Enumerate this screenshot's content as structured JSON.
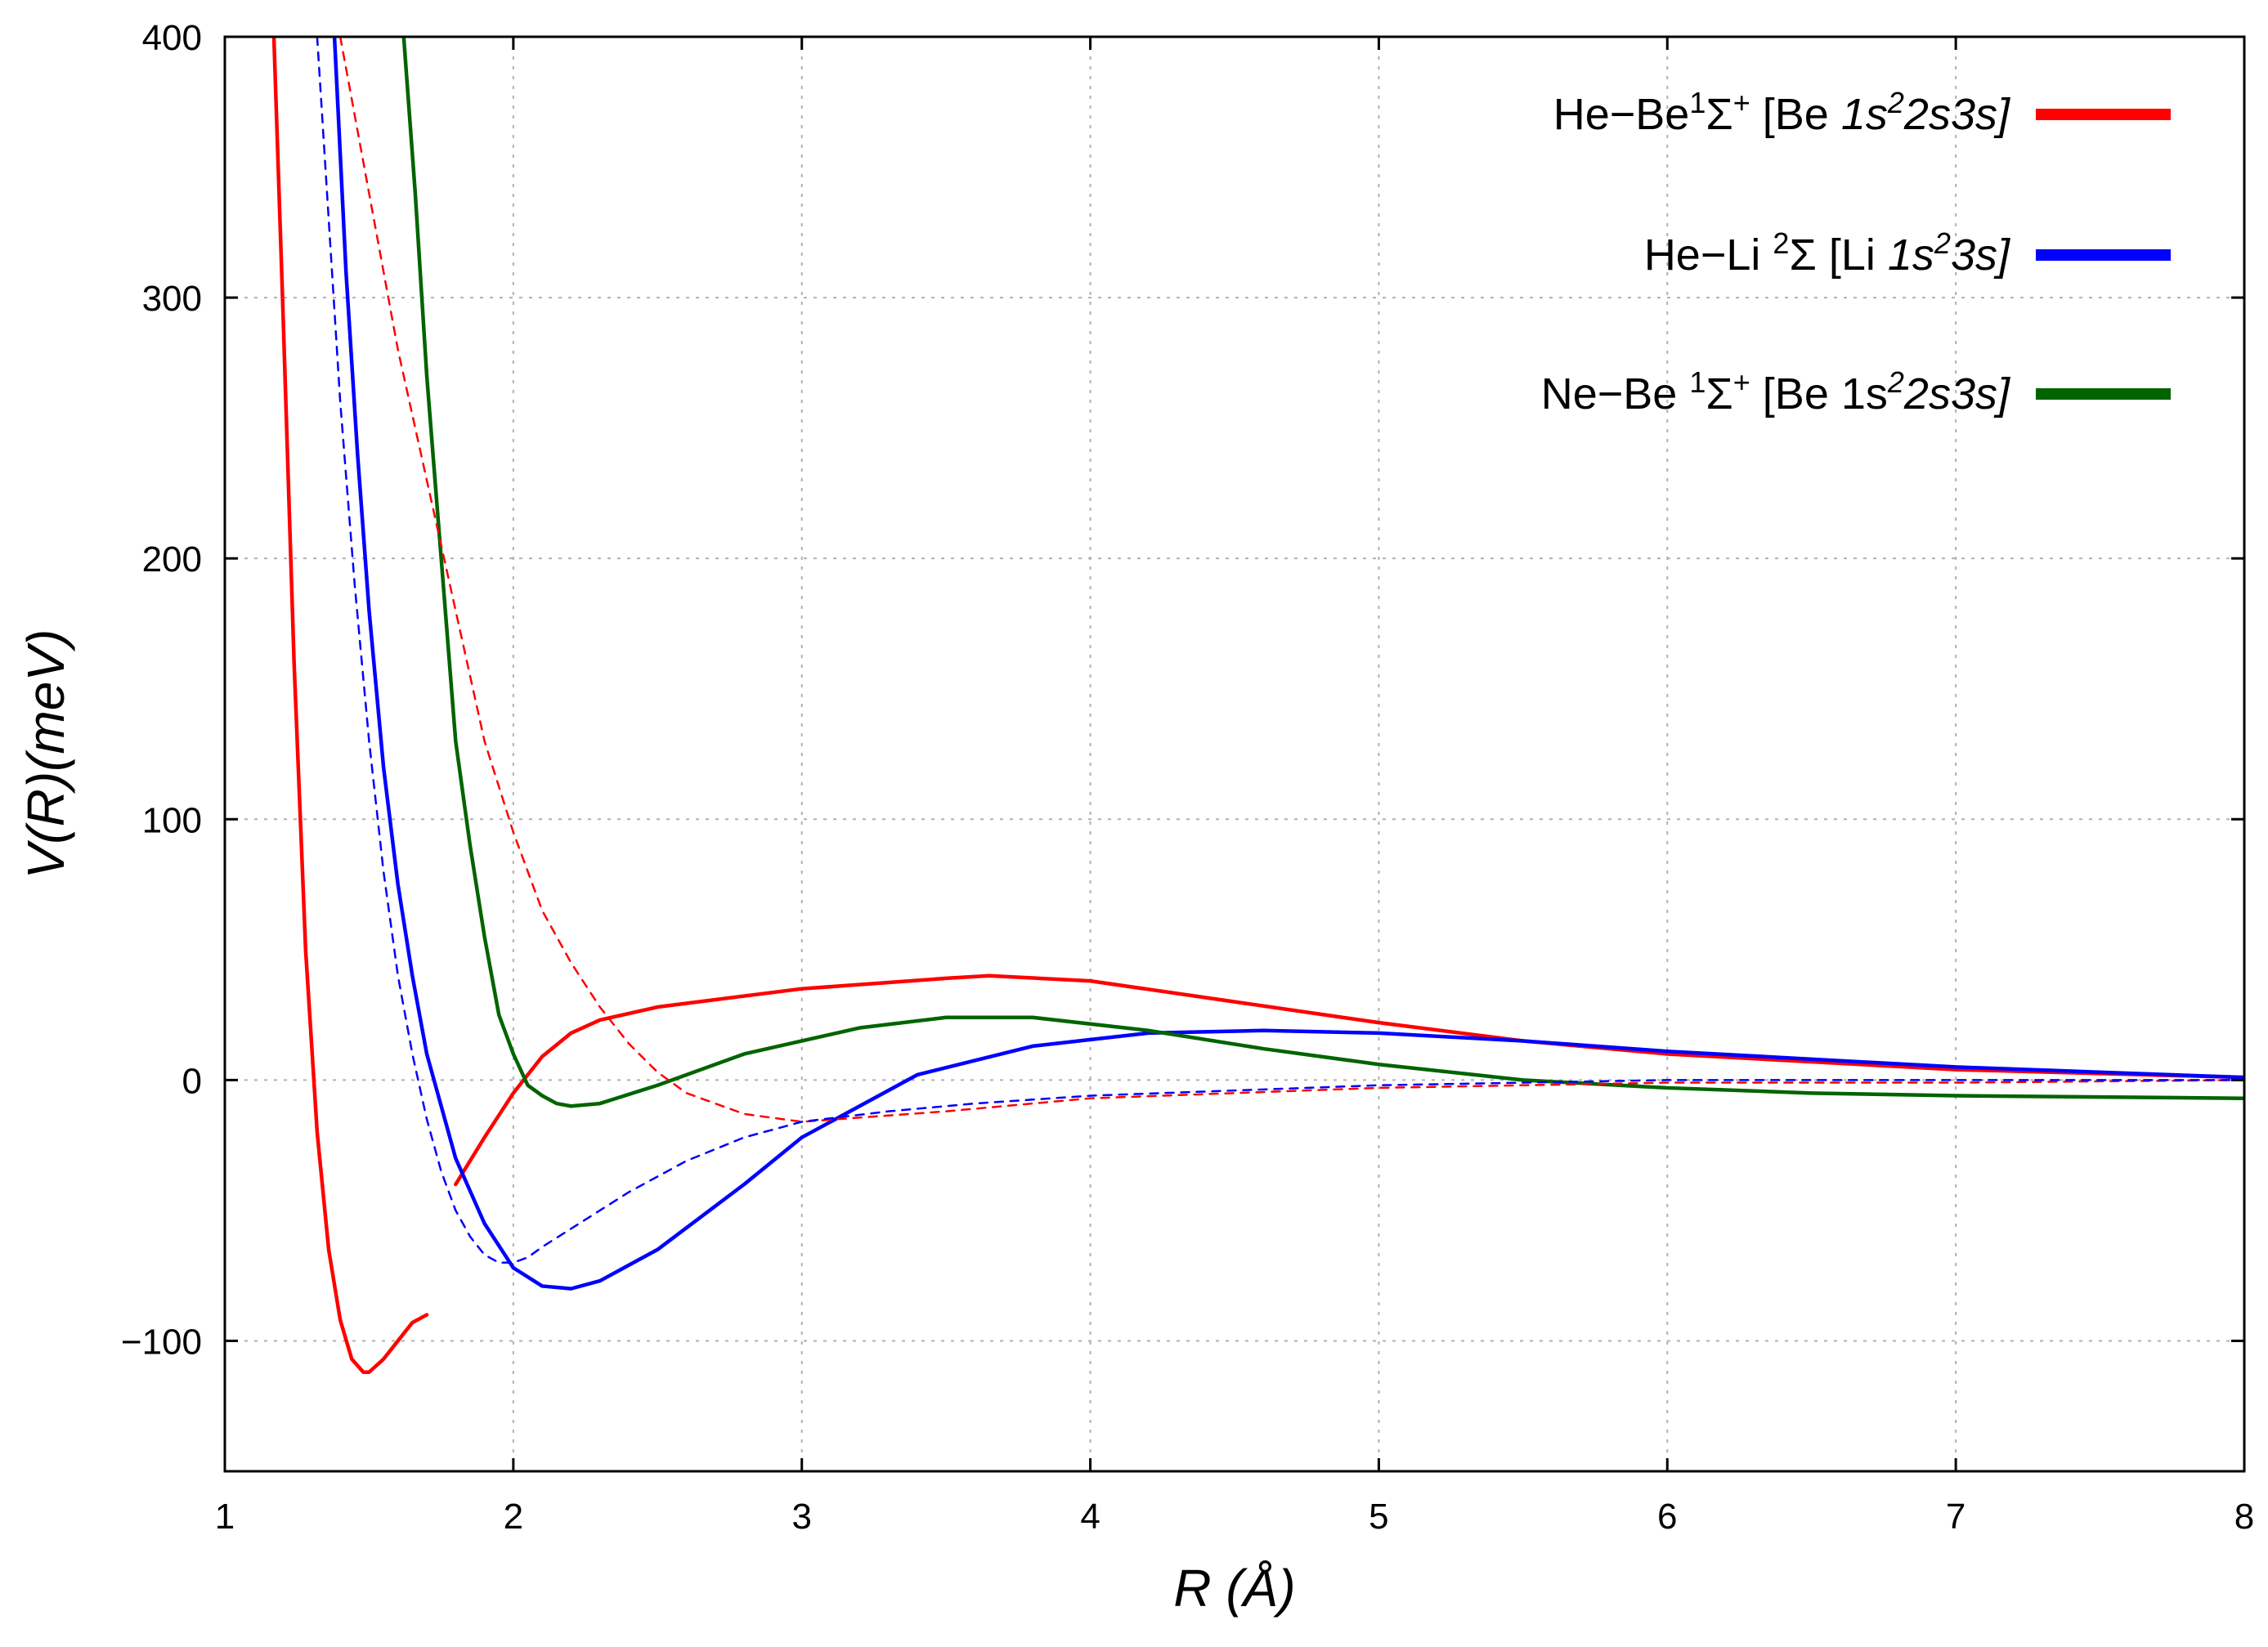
{
  "chart_data": {
    "type": "line",
    "xlabel": "R  (Å)",
    "ylabel": "V(R)(meV)",
    "xlim": [
      1,
      8
    ],
    "ylim": [
      -150,
      400
    ],
    "x_ticks": [
      1,
      2,
      3,
      4,
      5,
      6,
      7,
      8
    ],
    "y_ticks": [
      -100,
      0,
      100,
      200,
      300,
      400
    ],
    "x_tick_labels": [
      "1",
      "2",
      "3",
      "4",
      "5",
      "6",
      "7",
      "8"
    ],
    "y_tick_labels": [
      "−100",
      "0",
      "100",
      "200",
      "300",
      "400"
    ],
    "grid": true,
    "legend_position": "top-right",
    "colors": {
      "red": "#ff0000",
      "blue": "#0000ff",
      "green": "#006400"
    },
    "legend": [
      {
        "color": "#ff0000",
        "parts": [
          {
            "t": "He−Be"
          },
          {
            "t": "1",
            "sup": true
          },
          {
            "t": "Σ"
          },
          {
            "t": "+",
            "sup": true
          },
          {
            "t": " [Be "
          },
          {
            "t": "1s",
            "it": true
          },
          {
            "t": "2",
            "sup": true,
            "it": true
          },
          {
            "t": "2s3s]",
            "it": true
          }
        ]
      },
      {
        "color": "#0000ff",
        "parts": [
          {
            "t": "He−Li  "
          },
          {
            "t": "2",
            "sup": true
          },
          {
            "t": "Σ  [Li "
          },
          {
            "t": "1s",
            "it": true
          },
          {
            "t": "2",
            "sup": true,
            "it": true
          },
          {
            "t": "3s]",
            "it": true
          }
        ]
      },
      {
        "color": "#006400",
        "parts": [
          {
            "t": "Ne−Be "
          },
          {
            "t": "1",
            "sup": true
          },
          {
            "t": "Σ"
          },
          {
            "t": "+",
            "sup": true
          },
          {
            "t": " [Be 1s"
          },
          {
            "t": "2",
            "sup": true,
            "it": true
          },
          {
            "t": "2s3s]",
            "it": true
          }
        ]
      }
    ],
    "series": [
      {
        "color": "#ff0000",
        "style": "solid",
        "x": [
          1.17,
          1.2,
          1.24,
          1.28,
          1.32,
          1.36,
          1.4,
          1.44,
          1.48,
          1.5,
          1.55,
          1.6,
          1.65,
          1.7
        ],
        "y": [
          400,
          300,
          160,
          50,
          -20,
          -65,
          -92,
          -107,
          -112,
          -112,
          -107,
          -100,
          -93,
          -90
        ]
      },
      {
        "color": "#ff0000",
        "style": "solid",
        "x": [
          1.8,
          1.9,
          2.0,
          2.1,
          2.2,
          2.3,
          2.5,
          3.0,
          3.5,
          3.65,
          4.0,
          4.5,
          5.0,
          5.5,
          6.0,
          7.0,
          8.0
        ],
        "y": [
          -40,
          -22,
          -5,
          9,
          18,
          23,
          28,
          35,
          39,
          40,
          38,
          30,
          22,
          15,
          10,
          4,
          1
        ]
      },
      {
        "color": "#0000ff",
        "style": "solid",
        "x": [
          1.38,
          1.42,
          1.46,
          1.5,
          1.55,
          1.6,
          1.65,
          1.7,
          1.8,
          1.9,
          2.0,
          2.1,
          2.2,
          2.3,
          2.5,
          2.8,
          3.0,
          3.4,
          3.8,
          4.2,
          4.6,
          5.0,
          5.5,
          6.0,
          7.0,
          8.0
        ],
        "y": [
          400,
          310,
          240,
          180,
          120,
          75,
          40,
          10,
          -30,
          -55,
          -72,
          -79,
          -80,
          -77,
          -65,
          -40,
          -22,
          2,
          13,
          18,
          19,
          18,
          15,
          11,
          5,
          1
        ]
      },
      {
        "color": "#006400",
        "style": "solid",
        "x": [
          1.62,
          1.66,
          1.7,
          1.75,
          1.8,
          1.85,
          1.9,
          1.95,
          2.0,
          2.05,
          2.1,
          2.15,
          2.2,
          2.3,
          2.5,
          2.8,
          3.2,
          3.5,
          3.8,
          4.2,
          4.6,
          5.0,
          5.5,
          6.0,
          6.5,
          7.0,
          8.0
        ],
        "y": [
          400,
          340,
          270,
          200,
          130,
          90,
          55,
          25,
          10,
          -2,
          -6,
          -9,
          -10,
          -9,
          -2,
          10,
          20,
          24,
          24,
          19,
          12,
          6,
          0,
          -3,
          -5,
          -6,
          -7
        ]
      },
      {
        "color": "#ff0000",
        "style": "dashed",
        "x": [
          1.4,
          1.5,
          1.6,
          1.7,
          1.8,
          1.9,
          2.0,
          2.1,
          2.2,
          2.3,
          2.4,
          2.5,
          2.6,
          2.8,
          3.0,
          3.5,
          4.0,
          5.0,
          6.0,
          7.0,
          8.0
        ],
        "y": [
          400,
          340,
          280,
          230,
          180,
          130,
          95,
          65,
          45,
          28,
          14,
          3,
          -5,
          -13,
          -16,
          -12,
          -7,
          -3,
          -1,
          -1,
          0
        ]
      },
      {
        "color": "#0000ff",
        "style": "dashed",
        "x": [
          1.32,
          1.36,
          1.4,
          1.45,
          1.5,
          1.55,
          1.6,
          1.65,
          1.7,
          1.75,
          1.8,
          1.85,
          1.9,
          1.95,
          2.0,
          2.05,
          2.1,
          2.2,
          2.4,
          2.6,
          2.8,
          3.0,
          3.3,
          3.6,
          4.0,
          4.5,
          5.0,
          5.5,
          6.0,
          7.0,
          8.0
        ],
        "y": [
          400,
          330,
          260,
          190,
          130,
          80,
          40,
          10,
          -15,
          -35,
          -50,
          -60,
          -67,
          -70,
          -70,
          -68,
          -64,
          -57,
          -43,
          -31,
          -22,
          -16,
          -12,
          -9,
          -6,
          -4,
          -2,
          -1,
          0,
          0,
          0
        ]
      }
    ]
  }
}
